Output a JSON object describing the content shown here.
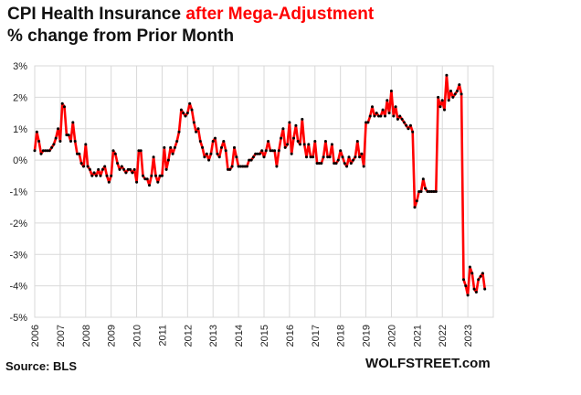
{
  "header": {
    "title_part1": "CPI Health Insurance ",
    "title_part2": "after Mega-Adjustment",
    "subtitle": "% change from Prior Month"
  },
  "footer": {
    "source": "Source: BLS",
    "brand": "WOLFSTREET.com"
  },
  "colors": {
    "line": "#ff0000",
    "marker": "#000000",
    "grid": "#d9d9d9",
    "title_highlight": "#ff0000"
  },
  "chart_data": {
    "type": "line",
    "title": "CPI Health Insurance after Mega-Adjustment",
    "subtitle": "% change from Prior Month",
    "xlabel": "",
    "ylabel": "",
    "ylim": [
      -5,
      3
    ],
    "xlim": [
      "2006-01",
      "2023-12"
    ],
    "grid": true,
    "legend": "none",
    "y_ticks": [
      {
        "value": 3,
        "label": "3%"
      },
      {
        "value": 2,
        "label": "2%"
      },
      {
        "value": 1,
        "label": "1%"
      },
      {
        "value": 0,
        "label": "0%"
      },
      {
        "value": -1,
        "label": "-1%"
      },
      {
        "value": -2,
        "label": "-2%"
      },
      {
        "value": -3,
        "label": "-3%"
      },
      {
        "value": -4,
        "label": "-4%"
      },
      {
        "value": -5,
        "label": "-5%"
      }
    ],
    "x_ticks": [
      "2006",
      "2007",
      "2008",
      "2009",
      "2010",
      "2011",
      "2012",
      "2013",
      "2014",
      "2015",
      "2016",
      "2017",
      "2018",
      "2019",
      "2020",
      "2021",
      "2022",
      "2023"
    ],
    "series": [
      {
        "name": "",
        "points": [
          [
            "2006-01",
            0.3
          ],
          [
            "2006-02",
            0.9
          ],
          [
            "2006-03",
            0.6
          ],
          [
            "2006-04",
            0.2
          ],
          [
            "2006-05",
            0.3
          ],
          [
            "2006-06",
            0.3
          ],
          [
            "2006-07",
            0.3
          ],
          [
            "2006-08",
            0.3
          ],
          [
            "2006-09",
            0.4
          ],
          [
            "2006-10",
            0.5
          ],
          [
            "2006-11",
            0.7
          ],
          [
            "2006-12",
            1.0
          ],
          [
            "2007-01",
            0.6
          ],
          [
            "2007-02",
            1.8
          ],
          [
            "2007-03",
            1.7
          ],
          [
            "2007-04",
            0.8
          ],
          [
            "2007-05",
            0.8
          ],
          [
            "2007-06",
            0.6
          ],
          [
            "2007-07",
            1.2
          ],
          [
            "2007-08",
            0.6
          ],
          [
            "2007-09",
            0.2
          ],
          [
            "2007-10",
            0.2
          ],
          [
            "2007-11",
            -0.1
          ],
          [
            "2007-12",
            -0.2
          ],
          [
            "2008-01",
            0.5
          ],
          [
            "2008-02",
            -0.2
          ],
          [
            "2008-03",
            -0.3
          ],
          [
            "2008-04",
            -0.5
          ],
          [
            "2008-05",
            -0.4
          ],
          [
            "2008-06",
            -0.5
          ],
          [
            "2008-07",
            -0.3
          ],
          [
            "2008-08",
            -0.5
          ],
          [
            "2008-09",
            -0.3
          ],
          [
            "2008-10",
            -0.2
          ],
          [
            "2008-11",
            -0.5
          ],
          [
            "2008-12",
            -0.7
          ],
          [
            "2009-01",
            -0.5
          ],
          [
            "2009-02",
            0.3
          ],
          [
            "2009-03",
            0.2
          ],
          [
            "2009-04",
            -0.1
          ],
          [
            "2009-05",
            -0.3
          ],
          [
            "2009-06",
            -0.2
          ],
          [
            "2009-07",
            -0.3
          ],
          [
            "2009-08",
            -0.4
          ],
          [
            "2009-09",
            -0.3
          ],
          [
            "2009-10",
            -0.3
          ],
          [
            "2009-11",
            -0.4
          ],
          [
            "2009-12",
            -0.3
          ],
          [
            "2010-01",
            -0.7
          ],
          [
            "2010-02",
            0.3
          ],
          [
            "2010-03",
            0.3
          ],
          [
            "2010-04",
            -0.5
          ],
          [
            "2010-05",
            -0.6
          ],
          [
            "2010-06",
            -0.6
          ],
          [
            "2010-07",
            -0.8
          ],
          [
            "2010-08",
            -0.5
          ],
          [
            "2010-09",
            0.1
          ],
          [
            "2010-10",
            -0.5
          ],
          [
            "2010-11",
            -0.7
          ],
          [
            "2010-12",
            -0.5
          ],
          [
            "2011-01",
            -0.5
          ],
          [
            "2011-02",
            0.4
          ],
          [
            "2011-03",
            -0.3
          ],
          [
            "2011-04",
            0.0
          ],
          [
            "2011-05",
            0.4
          ],
          [
            "2011-06",
            0.2
          ],
          [
            "2011-07",
            0.4
          ],
          [
            "2011-08",
            0.6
          ],
          [
            "2011-09",
            0.9
          ],
          [
            "2011-10",
            1.6
          ],
          [
            "2011-11",
            1.5
          ],
          [
            "2011-12",
            1.4
          ],
          [
            "2012-01",
            1.5
          ],
          [
            "2012-02",
            1.8
          ],
          [
            "2012-03",
            1.6
          ],
          [
            "2012-04",
            1.2
          ],
          [
            "2012-05",
            0.9
          ],
          [
            "2012-06",
            1.0
          ],
          [
            "2012-07",
            0.6
          ],
          [
            "2012-08",
            0.4
          ],
          [
            "2012-09",
            0.1
          ],
          [
            "2012-10",
            0.2
          ],
          [
            "2012-11",
            0.0
          ],
          [
            "2012-12",
            0.2
          ],
          [
            "2013-01",
            0.6
          ],
          [
            "2013-02",
            0.7
          ],
          [
            "2013-03",
            0.2
          ],
          [
            "2013-04",
            0.1
          ],
          [
            "2013-05",
            0.4
          ],
          [
            "2013-06",
            0.6
          ],
          [
            "2013-07",
            0.3
          ],
          [
            "2013-08",
            -0.3
          ],
          [
            "2013-09",
            -0.3
          ],
          [
            "2013-10",
            -0.2
          ],
          [
            "2013-11",
            0.4
          ],
          [
            "2013-12",
            0.1
          ],
          [
            "2014-01",
            -0.2
          ],
          [
            "2014-02",
            -0.2
          ],
          [
            "2014-03",
            -0.2
          ],
          [
            "2014-04",
            -0.2
          ],
          [
            "2014-05",
            -0.2
          ],
          [
            "2014-06",
            0.0
          ],
          [
            "2014-07",
            0.0
          ],
          [
            "2014-08",
            0.1
          ],
          [
            "2014-09",
            0.2
          ],
          [
            "2014-10",
            0.2
          ],
          [
            "2014-11",
            0.2
          ],
          [
            "2014-12",
            0.3
          ],
          [
            "2015-01",
            0.1
          ],
          [
            "2015-02",
            0.3
          ],
          [
            "2015-03",
            0.6
          ],
          [
            "2015-04",
            0.3
          ],
          [
            "2015-05",
            0.3
          ],
          [
            "2015-06",
            0.3
          ],
          [
            "2015-07",
            -0.2
          ],
          [
            "2015-08",
            0.3
          ],
          [
            "2015-09",
            0.7
          ],
          [
            "2015-10",
            1.0
          ],
          [
            "2015-11",
            0.4
          ],
          [
            "2015-12",
            0.5
          ],
          [
            "2016-01",
            1.2
          ],
          [
            "2016-02",
            0.2
          ],
          [
            "2016-03",
            0.7
          ],
          [
            "2016-04",
            1.1
          ],
          [
            "2016-05",
            0.6
          ],
          [
            "2016-06",
            0.5
          ],
          [
            "2016-07",
            1.3
          ],
          [
            "2016-08",
            0.5
          ],
          [
            "2016-09",
            0.1
          ],
          [
            "2016-10",
            0.5
          ],
          [
            "2016-11",
            0.1
          ],
          [
            "2016-12",
            0.1
          ],
          [
            "2017-01",
            0.6
          ],
          [
            "2017-02",
            -0.1
          ],
          [
            "2017-03",
            -0.1
          ],
          [
            "2017-04",
            -0.1
          ],
          [
            "2017-05",
            0.1
          ],
          [
            "2017-06",
            0.6
          ],
          [
            "2017-07",
            0.1
          ],
          [
            "2017-08",
            0.1
          ],
          [
            "2017-09",
            0.5
          ],
          [
            "2017-10",
            -0.1
          ],
          [
            "2017-11",
            -0.1
          ],
          [
            "2017-12",
            0.0
          ],
          [
            "2018-01",
            0.3
          ],
          [
            "2018-02",
            0.1
          ],
          [
            "2018-03",
            -0.1
          ],
          [
            "2018-04",
            -0.2
          ],
          [
            "2018-05",
            0.1
          ],
          [
            "2018-06",
            -0.1
          ],
          [
            "2018-07",
            0.0
          ],
          [
            "2018-08",
            0.1
          ],
          [
            "2018-09",
            0.6
          ],
          [
            "2018-10",
            0.1
          ],
          [
            "2018-11",
            0.2
          ],
          [
            "2018-12",
            -0.2
          ],
          [
            "2019-01",
            1.2
          ],
          [
            "2019-02",
            1.2
          ],
          [
            "2019-03",
            1.4
          ],
          [
            "2019-04",
            1.7
          ],
          [
            "2019-05",
            1.4
          ],
          [
            "2019-06",
            1.5
          ],
          [
            "2019-07",
            1.4
          ],
          [
            "2019-08",
            1.4
          ],
          [
            "2019-09",
            1.6
          ],
          [
            "2019-10",
            1.4
          ],
          [
            "2019-11",
            1.9
          ],
          [
            "2019-12",
            1.5
          ],
          [
            "2020-01",
            2.2
          ],
          [
            "2020-02",
            1.4
          ],
          [
            "2020-03",
            1.7
          ],
          [
            "2020-04",
            1.3
          ],
          [
            "2020-05",
            1.4
          ],
          [
            "2020-06",
            1.3
          ],
          [
            "2020-07",
            1.2
          ],
          [
            "2020-08",
            1.1
          ],
          [
            "2020-09",
            1.0
          ],
          [
            "2020-10",
            1.1
          ],
          [
            "2020-11",
            0.9
          ],
          [
            "2020-12",
            -1.5
          ],
          [
            "2021-01",
            -1.3
          ],
          [
            "2021-02",
            -1.0
          ],
          [
            "2021-03",
            -1.0
          ],
          [
            "2021-04",
            -0.6
          ],
          [
            "2021-05",
            -0.9
          ],
          [
            "2021-06",
            -1.0
          ],
          [
            "2021-07",
            -1.0
          ],
          [
            "2021-08",
            -1.0
          ],
          [
            "2021-09",
            -1.0
          ],
          [
            "2021-10",
            -1.0
          ],
          [
            "2021-11",
            2.0
          ],
          [
            "2021-12",
            1.7
          ],
          [
            "2022-01",
            1.9
          ],
          [
            "2022-02",
            1.6
          ],
          [
            "2022-03",
            2.7
          ],
          [
            "2022-04",
            1.9
          ],
          [
            "2022-05",
            2.2
          ],
          [
            "2022-06",
            2.0
          ],
          [
            "2022-07",
            2.1
          ],
          [
            "2022-08",
            2.2
          ],
          [
            "2022-09",
            2.4
          ],
          [
            "2022-10",
            2.1
          ],
          [
            "2022-11",
            -3.8
          ],
          [
            "2022-12",
            -4.0
          ],
          [
            "2023-01",
            -4.3
          ],
          [
            "2023-02",
            -3.4
          ],
          [
            "2023-03",
            -3.6
          ],
          [
            "2023-04",
            -4.1
          ],
          [
            "2023-05",
            -4.2
          ],
          [
            "2023-06",
            -3.8
          ],
          [
            "2023-07",
            -3.7
          ],
          [
            "2023-08",
            -3.6
          ],
          [
            "2023-09",
            -4.1
          ]
        ]
      }
    ]
  }
}
